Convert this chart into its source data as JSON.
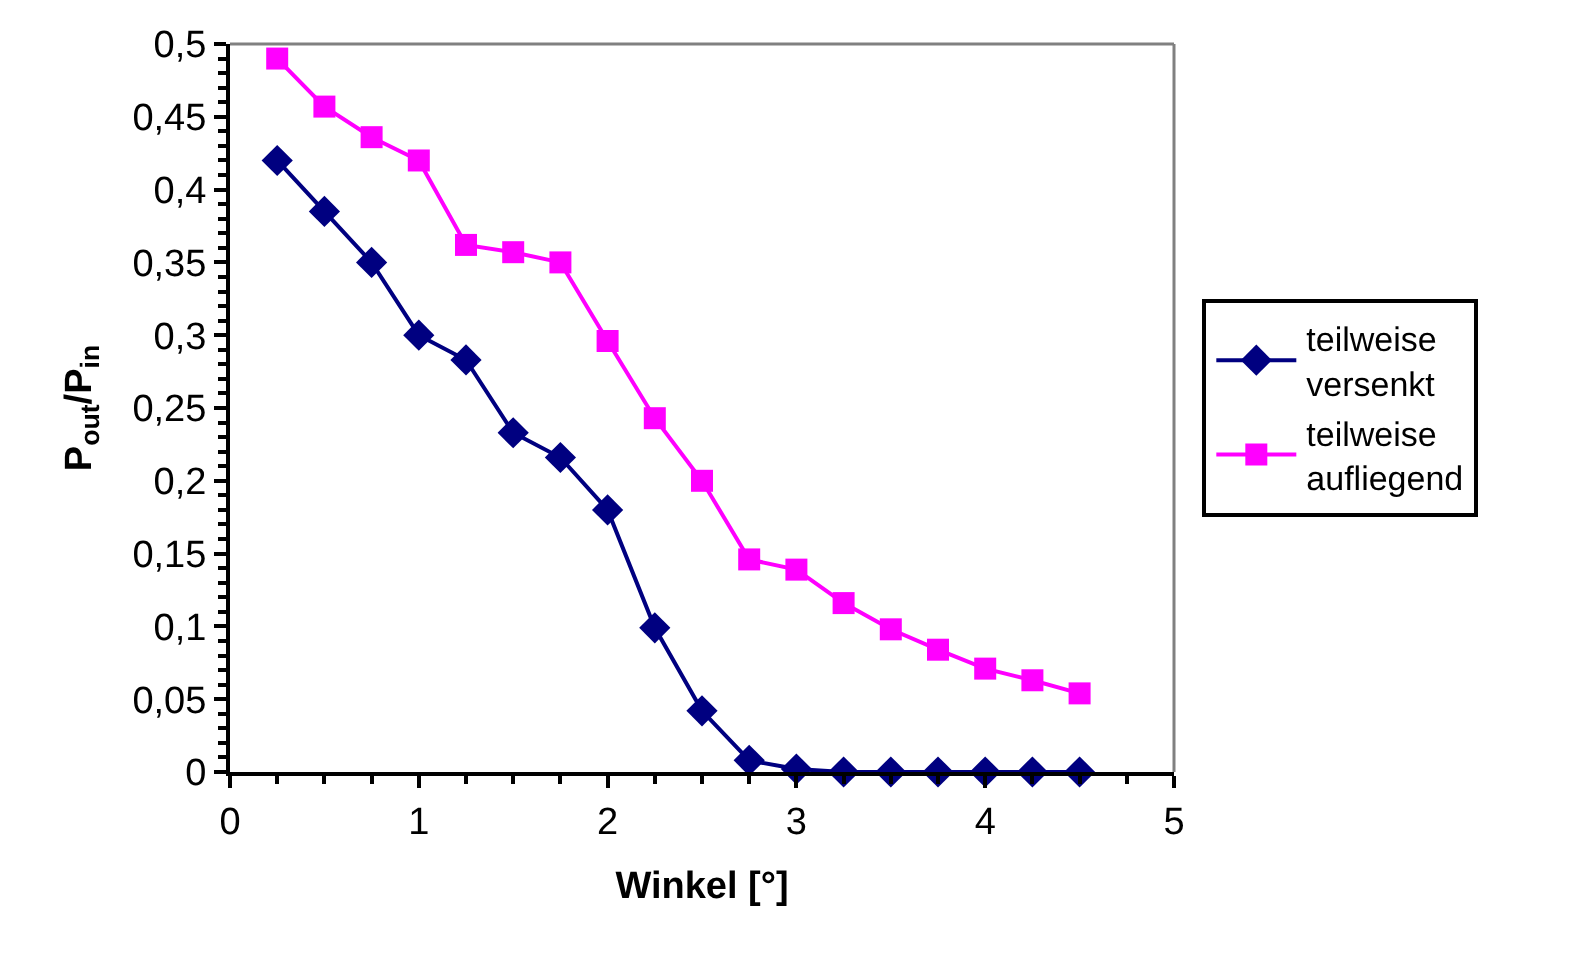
{
  "chart_data": {
    "type": "line",
    "xlabel": "Winkel [°]",
    "ylabel": "P$_{out}$/P$_{in}$",
    "x": [
      0.25,
      0.5,
      0.75,
      1,
      1.25,
      1.5,
      1.75,
      2,
      2.25,
      2.5,
      2.75,
      3,
      3.25,
      3.5,
      3.75,
      4,
      4.25,
      4.5
    ],
    "series": [
      {
        "name": "teilweise versenkt",
        "color": "#000080",
        "marker": "diamond",
        "values": [
          0.42,
          0.385,
          0.35,
          0.3,
          0.283,
          0.233,
          0.216,
          0.18,
          0.099,
          0.042,
          0.008,
          0.002,
          0,
          0,
          0,
          0,
          0,
          0
        ]
      },
      {
        "name": "teilweise aufliegend",
        "color": "#ff00ff",
        "marker": "square",
        "values": [
          0.49,
          0.457,
          0.436,
          0.42,
          0.362,
          0.357,
          0.35,
          0.296,
          0.243,
          0.2,
          0.146,
          0.139,
          0.116,
          0.098,
          0.084,
          0.071,
          0.063,
          0.054
        ]
      }
    ],
    "xlim": [
      0,
      5
    ],
    "xticks": [
      0,
      1,
      2,
      3,
      4,
      5
    ],
    "ylim": [
      0,
      0.5
    ],
    "yticks": [
      0,
      {
        "value": 0.05,
        "label": "0,05"
      },
      {
        "value": 0.1,
        "label": "0,1"
      },
      {
        "value": 0.15,
        "label": "0,15"
      },
      {
        "value": 0.2,
        "label": "0,2"
      },
      {
        "value": 0.25,
        "label": "0,25"
      },
      {
        "value": 0.3,
        "label": "0,3"
      },
      {
        "value": 0.35,
        "label": "0,35"
      },
      {
        "value": 0.4,
        "label": "0,4"
      },
      {
        "value": 0.45,
        "label": "0,45"
      },
      {
        "value": 0.5,
        "label": "0,5"
      }
    ],
    "legend": "right",
    "line_style": "solid"
  }
}
